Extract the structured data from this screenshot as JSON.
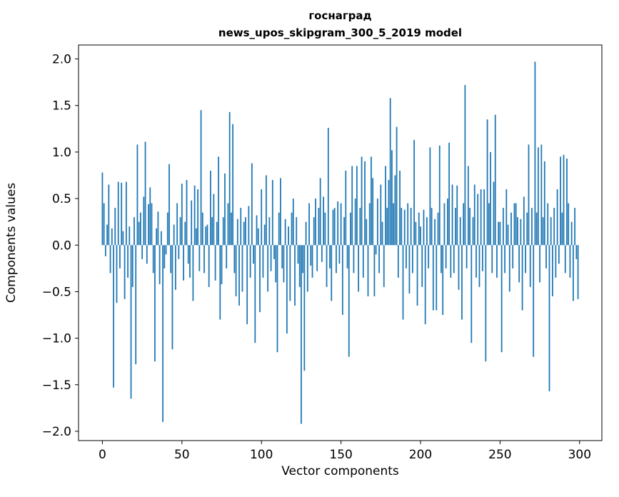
{
  "figure": {
    "title_line1": "госнаград",
    "title_line2": "news_upos_skipgram_300_5_2019 model",
    "xlabel": "Vector components",
    "ylabel": "Components values"
  },
  "chart_data": {
    "type": "bar",
    "title": "госнаград\nnews_upos_skipgram_300_5_2019 model",
    "xlabel": "Vector components",
    "ylabel": "Components values",
    "bar_color": "#1f77b4",
    "axis_color": "#000000",
    "grid": false,
    "legend": null,
    "xlim": [
      -15,
      314
    ],
    "ylim": [
      -2.1,
      2.15
    ],
    "xticks": [
      0,
      50,
      100,
      150,
      200,
      250,
      300
    ],
    "yticks": [
      -2.0,
      -1.5,
      -1.0,
      -0.5,
      0.0,
      0.5,
      1.0,
      1.5,
      2.0
    ],
    "values": [
      0.78,
      0.45,
      -0.12,
      0.22,
      0.65,
      -0.3,
      0.18,
      -1.53,
      0.4,
      -0.62,
      0.68,
      -0.25,
      0.67,
      0.15,
      -0.58,
      0.68,
      -0.35,
      0.2,
      -1.65,
      -0.45,
      0.3,
      -1.28,
      1.08,
      0.25,
      0.35,
      -0.15,
      0.52,
      1.11,
      -0.2,
      0.44,
      0.62,
      0.45,
      -0.3,
      -1.25,
      0.18,
      0.36,
      -0.42,
      0.15,
      -1.9,
      -0.25,
      -0.1,
      0.35,
      0.87,
      -0.3,
      -1.12,
      0.22,
      -0.48,
      0.45,
      -0.15,
      0.3,
      0.66,
      -0.38,
      0.25,
      0.7,
      -0.2,
      -0.35,
      0.48,
      -0.6,
      0.64,
      0.18,
      0.6,
      -0.28,
      1.45,
      0.35,
      -0.3,
      0.2,
      0.22,
      -0.45,
      0.8,
      0.3,
      0.55,
      -0.38,
      0.25,
      0.95,
      -0.8,
      -0.42,
      0.3,
      0.77,
      -0.25,
      0.45,
      1.43,
      0.35,
      1.3,
      -0.3,
      -0.55,
      0.28,
      -0.65,
      0.4,
      -0.5,
      0.25,
      0.3,
      -0.85,
      0.42,
      -0.35,
      0.88,
      -0.2,
      -1.05,
      0.32,
      0.18,
      -0.72,
      0.6,
      -0.35,
      0.22,
      0.75,
      -0.5,
      0.3,
      -0.28,
      0.7,
      -0.15,
      -0.4,
      -1.15,
      0.35,
      0.72,
      -0.25,
      -0.4,
      0.28,
      -0.95,
      0.2,
      -0.6,
      0.35,
      0.5,
      -0.65,
      0.3,
      -0.2,
      -0.45,
      -1.92,
      -0.3,
      -1.35,
      0.25,
      -0.5,
      0.45,
      -0.22,
      -0.35,
      0.3,
      0.5,
      -0.28,
      0.4,
      0.72,
      -0.18,
      0.52,
      0.35,
      -0.45,
      1.26,
      -0.25,
      -0.6,
      0.38,
      0.4,
      -0.3,
      0.47,
      -0.2,
      0.45,
      -0.75,
      0.3,
      0.8,
      -0.25,
      -1.2,
      0.35,
      0.85,
      -0.3,
      0.5,
      0.85,
      -0.5,
      0.4,
      0.95,
      -0.35,
      0.9,
      0.28,
      -0.55,
      0.45,
      0.95,
      0.72,
      -0.55,
      -0.1,
      0.5,
      -0.3,
      0.65,
      0.25,
      -0.45,
      0.85,
      0.4,
      0.7,
      1.58,
      1.02,
      0.45,
      0.75,
      1.27,
      -0.35,
      0.8,
      0.4,
      -0.8,
      0.38,
      -0.25,
      0.45,
      -0.52,
      0.4,
      -0.3,
      1.13,
      0.25,
      -0.65,
      0.35,
      0.2,
      -0.45,
      0.38,
      -0.85,
      0.3,
      -0.25,
      1.05,
      0.4,
      -0.7,
      0.28,
      -0.7,
      0.35,
      1.07,
      -0.3,
      -0.75,
      0.45,
      -0.25,
      0.5,
      1.1,
      -0.35,
      0.65,
      -0.3,
      0.4,
      0.64,
      -0.48,
      0.3,
      -0.8,
      0.45,
      1.72,
      -0.25,
      0.85,
      0.4,
      -1.05,
      0.3,
      0.65,
      -0.35,
      0.55,
      -0.45,
      0.6,
      -0.28,
      0.6,
      -1.25,
      1.35,
      0.45,
      1.0,
      -0.3,
      0.68,
      1.4,
      -0.35,
      0.25,
      0.25,
      -1.15,
      0.4,
      -0.3,
      0.6,
      0.22,
      -0.5,
      0.35,
      -0.25,
      0.45,
      0.45,
      0.3,
      -0.4,
      0.28,
      -0.7,
      0.52,
      -0.3,
      0.35,
      1.08,
      -0.45,
      0.4,
      -1.2,
      1.97,
      0.35,
      1.05,
      -0.4,
      1.08,
      0.3,
      0.9,
      -0.25,
      0.45,
      -1.57,
      0.3,
      -0.55,
      0.4,
      -0.35,
      0.6,
      -0.2,
      0.95,
      0.35,
      0.97,
      -0.3,
      0.93,
      0.45,
      -0.35,
      0.25,
      -0.6,
      0.4,
      -0.15,
      -0.58
    ]
  }
}
